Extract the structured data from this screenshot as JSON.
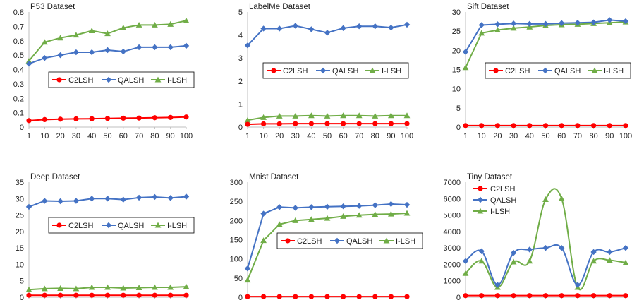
{
  "chart_data": [
    {
      "type": "line",
      "title": "P53 Dataset",
      "x": [
        "1",
        "10",
        "20",
        "30",
        "40",
        "50",
        "60",
        "70",
        "80",
        "90",
        "100"
      ],
      "ylim": [
        0,
        0.8
      ],
      "yticks": [
        "0",
        "0.1",
        "0.2",
        "0.3",
        "0.4",
        "0.5",
        "0.6",
        "0.7",
        "0.8"
      ],
      "grid": false,
      "legend": {
        "placement": "center-right",
        "layout": "horizontal"
      },
      "series": [
        {
          "name": "C2LSH",
          "color": "#ff0000",
          "marker": "circle",
          "values": [
            0.045,
            0.052,
            0.055,
            0.057,
            0.058,
            0.06,
            0.062,
            0.063,
            0.065,
            0.067,
            0.07
          ]
        },
        {
          "name": "QALSH",
          "color": "#4472c4",
          "marker": "diamond",
          "values": [
            0.44,
            0.48,
            0.5,
            0.52,
            0.52,
            0.535,
            0.525,
            0.555,
            0.555,
            0.555,
            0.565
          ]
        },
        {
          "name": "I-LSH",
          "color": "#70ad47",
          "marker": "triangle",
          "values": [
            0.46,
            0.59,
            0.62,
            0.64,
            0.67,
            0.65,
            0.69,
            0.71,
            0.71,
            0.715,
            0.74
          ]
        }
      ]
    },
    {
      "type": "line",
      "title": "LabelMe Dataset",
      "x": [
        "1",
        "10",
        "20",
        "30",
        "40",
        "50",
        "60",
        "70",
        "80",
        "90",
        "100"
      ],
      "ylim": [
        0,
        5
      ],
      "yticks": [
        "0",
        "1",
        "2",
        "3",
        "4",
        "5"
      ],
      "grid": false,
      "legend": {
        "placement": "center",
        "layout": "horizontal"
      },
      "series": [
        {
          "name": "C2LSH",
          "color": "#ff0000",
          "marker": "circle",
          "values": [
            0.12,
            0.14,
            0.14,
            0.15,
            0.15,
            0.15,
            0.15,
            0.15,
            0.15,
            0.15,
            0.15
          ]
        },
        {
          "name": "QALSH",
          "color": "#4472c4",
          "marker": "diamond",
          "values": [
            3.55,
            4.28,
            4.28,
            4.4,
            4.25,
            4.1,
            4.3,
            4.38,
            4.38,
            4.32,
            4.45
          ]
        },
        {
          "name": "I-LSH",
          "color": "#70ad47",
          "marker": "triangle",
          "values": [
            0.3,
            0.42,
            0.48,
            0.48,
            0.5,
            0.48,
            0.5,
            0.5,
            0.48,
            0.5,
            0.5
          ]
        }
      ]
    },
    {
      "type": "line",
      "title": "Sift Dataset",
      "x": [
        "1",
        "10",
        "20",
        "30",
        "40",
        "50",
        "60",
        "70",
        "80",
        "90",
        "100"
      ],
      "ylim": [
        0,
        30
      ],
      "yticks": [
        "0",
        "5",
        "10",
        "15",
        "20",
        "25",
        "30"
      ],
      "grid": false,
      "legend": {
        "placement": "center",
        "layout": "horizontal"
      },
      "series": [
        {
          "name": "C2LSH",
          "color": "#ff0000",
          "marker": "circle",
          "values": [
            0.4,
            0.4,
            0.4,
            0.4,
            0.4,
            0.4,
            0.4,
            0.4,
            0.4,
            0.4,
            0.4
          ]
        },
        {
          "name": "QALSH",
          "color": "#4472c4",
          "marker": "diamond",
          "values": [
            19.6,
            26.6,
            26.8,
            27.0,
            26.9,
            26.9,
            27.1,
            27.2,
            27.3,
            27.9,
            27.6
          ]
        },
        {
          "name": "I-LSH",
          "color": "#70ad47",
          "marker": "triangle",
          "values": [
            15.5,
            24.5,
            25.3,
            25.8,
            26.1,
            26.5,
            26.7,
            26.8,
            27.0,
            27.2,
            27.4
          ]
        }
      ]
    },
    {
      "type": "line",
      "title": "Deep Dataset",
      "x": [
        "1",
        "10",
        "20",
        "30",
        "40",
        "50",
        "60",
        "70",
        "80",
        "90",
        "100"
      ],
      "ylim": [
        0,
        35
      ],
      "yticks": [
        "0",
        "5",
        "10",
        "15",
        "20",
        "25",
        "30",
        "35"
      ],
      "grid": false,
      "legend": {
        "placement": "center",
        "layout": "horizontal"
      },
      "series": [
        {
          "name": "C2LSH",
          "color": "#ff0000",
          "marker": "circle",
          "values": [
            0.6,
            0.6,
            0.6,
            0.6,
            0.6,
            0.6,
            0.6,
            0.6,
            0.6,
            0.6,
            0.6
          ]
        },
        {
          "name": "QALSH",
          "color": "#4472c4",
          "marker": "diamond",
          "values": [
            27.5,
            29.3,
            29.2,
            29.3,
            30.0,
            30.0,
            29.7,
            30.3,
            30.5,
            30.2,
            30.6
          ]
        },
        {
          "name": "I-LSH",
          "color": "#70ad47",
          "marker": "triangle",
          "values": [
            2.3,
            2.6,
            2.7,
            2.6,
            3.0,
            3.0,
            2.8,
            2.9,
            3.0,
            3.0,
            3.2
          ]
        }
      ]
    },
    {
      "type": "line",
      "title": "Mnist Dataset",
      "x": [
        "1",
        "10",
        "20",
        "30",
        "40",
        "50",
        "60",
        "70",
        "80",
        "90",
        "100"
      ],
      "ylim": [
        0,
        300
      ],
      "yticks": [
        "0",
        "50",
        "100",
        "150",
        "200",
        "250",
        "300"
      ],
      "grid": false,
      "legend": {
        "placement": "center-right",
        "layout": "horizontal"
      },
      "series": [
        {
          "name": "C2LSH",
          "color": "#ff0000",
          "marker": "circle",
          "values": [
            1.5,
            1.5,
            1.5,
            1.5,
            1.5,
            1.5,
            1.5,
            1.5,
            1.5,
            1.5,
            1.5
          ]
        },
        {
          "name": "QALSH",
          "color": "#4472c4",
          "marker": "diamond",
          "values": [
            75,
            218,
            235,
            233,
            235,
            236,
            237,
            238,
            240,
            243,
            241
          ]
        },
        {
          "name": "I-LSH",
          "color": "#70ad47",
          "marker": "triangle",
          "values": [
            45,
            148,
            190,
            200,
            203,
            206,
            211,
            214,
            216,
            217,
            219
          ]
        }
      ]
    },
    {
      "type": "line",
      "title": "Tiny Dataset",
      "x": [
        "1",
        "10",
        "20",
        "30",
        "40",
        "50",
        "60",
        "70",
        "80",
        "90",
        "100"
      ],
      "ylim": [
        0,
        7000
      ],
      "yticks": [
        "0",
        "1000",
        "2000",
        "3000",
        "4000",
        "5000",
        "6000",
        "7000"
      ],
      "grid": false,
      "smooth": true,
      "legend": {
        "placement": "top-left",
        "layout": "vertical"
      },
      "series": [
        {
          "name": "C2LSH",
          "color": "#ff0000",
          "marker": "circle",
          "values": [
            100,
            100,
            100,
            100,
            100,
            100,
            100,
            100,
            100,
            100,
            100
          ]
        },
        {
          "name": "QALSH",
          "color": "#4472c4",
          "marker": "diamond",
          "values": [
            2200,
            2800,
            750,
            2700,
            2900,
            3000,
            3000,
            750,
            2750,
            2750,
            3000
          ]
        },
        {
          "name": "I-LSH",
          "color": "#70ad47",
          "marker": "triangle",
          "values": [
            1450,
            2200,
            600,
            2150,
            2200,
            5950,
            6000,
            600,
            2200,
            2250,
            2100
          ]
        }
      ]
    }
  ]
}
